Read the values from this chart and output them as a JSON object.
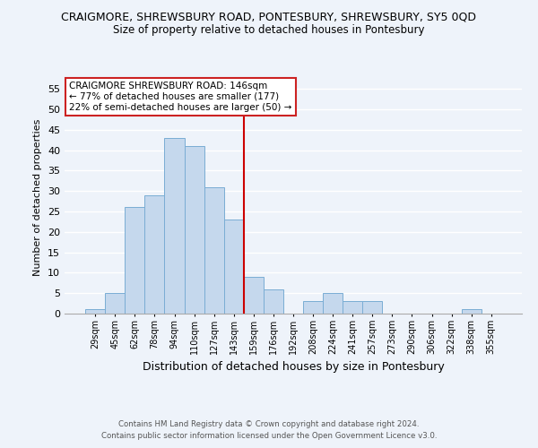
{
  "title": "CRAIGMORE, SHREWSBURY ROAD, PONTESBURY, SHREWSBURY, SY5 0QD",
  "subtitle": "Size of property relative to detached houses in Pontesbury",
  "xlabel": "Distribution of detached houses by size in Pontesbury",
  "ylabel": "Number of detached properties",
  "categories": [
    "29sqm",
    "45sqm",
    "62sqm",
    "78sqm",
    "94sqm",
    "110sqm",
    "127sqm",
    "143sqm",
    "159sqm",
    "176sqm",
    "192sqm",
    "208sqm",
    "224sqm",
    "241sqm",
    "257sqm",
    "273sqm",
    "290sqm",
    "306sqm",
    "322sqm",
    "338sqm",
    "355sqm"
  ],
  "values": [
    1,
    5,
    26,
    29,
    43,
    41,
    31,
    23,
    9,
    6,
    0,
    3,
    5,
    3,
    3,
    0,
    0,
    0,
    0,
    1,
    0
  ],
  "bar_color": "#c5d8ed",
  "bar_edge_color": "#7aadd4",
  "vline_x": 7.5,
  "vline_color": "#cc0000",
  "ylim": [
    0,
    57
  ],
  "yticks": [
    0,
    5,
    10,
    15,
    20,
    25,
    30,
    35,
    40,
    45,
    50,
    55
  ],
  "annotation_title": "CRAIGMORE SHREWSBURY ROAD: 146sqm",
  "annotation_line1": "← 77% of detached houses are smaller (177)",
  "annotation_line2": "22% of semi-detached houses are larger (50) →",
  "footer1": "Contains HM Land Registry data © Crown copyright and database right 2024.",
  "footer2": "Contains public sector information licensed under the Open Government Licence v3.0.",
  "background_color": "#eef3fa",
  "grid_color": "#ffffff"
}
